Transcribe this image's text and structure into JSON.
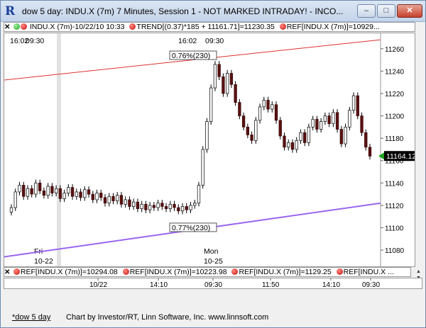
{
  "window": {
    "title": "dow 5 day: INDU.X (7m) 7 Minutes, Session 1 - NOT MARKED INTRADAY! - INCO...",
    "min_glyph": "–",
    "max_glyph": "□",
    "close_glyph": "✕"
  },
  "legend_top": {
    "close_glyph": "✕",
    "symbol": "INDU.X (7m)-10/22/10 10:33",
    "trend": "TREND[(0.37)*185 + 11161.71]=11230.35",
    "ref": "REF[INDU.X (7m)]=10929..."
  },
  "legend_bottom": {
    "close_glyph": "✕",
    "items": [
      "REF[INDU.X (7m)]=10294.08",
      "REF[INDU.X (7m)]=10223.98",
      "REF[INDU.X (7m)]=1129.25",
      "REF[INDU.X ..."
    ]
  },
  "chart_data": {
    "type": "candlestick",
    "y_axis": {
      "ticks": [
        11080,
        11100,
        11120,
        11140,
        11160,
        11180,
        11200,
        11220,
        11240,
        11260
      ],
      "range": [
        11068,
        11270
      ],
      "side": "right"
    },
    "last_price_label": "11164.12",
    "top_time_labels": [
      "16:02",
      "09:30",
      "16:02",
      "09:30"
    ],
    "session_labels": [
      {
        "day": "Fri",
        "date": "10-22"
      },
      {
        "day": "Mon",
        "date": "10-25"
      }
    ],
    "bottom_time_labels": [
      "10/22",
      "14:10",
      "09:30",
      "11:50",
      "14:10",
      "09:30"
    ],
    "channel_annotations": [
      {
        "label": "0.76%(230)",
        "line": "upper",
        "color": "#e03030"
      },
      {
        "label": "0.77%(230)",
        "line": "lower",
        "color": "#9966ee"
      }
    ],
    "upper_trend": {
      "start": 11232,
      "end": 11268,
      "color": "#e03030"
    },
    "lower_trend": {
      "start": 11074,
      "end": 11122,
      "color": "#9966ee"
    },
    "closes": [
      11118,
      11132,
      11138,
      11128,
      11135,
      11130,
      11140,
      11133,
      11129,
      11137,
      11131,
      11135,
      11126,
      11131,
      11136,
      11128,
      11132,
      11127,
      11134,
      11130,
      11125,
      11131,
      11127,
      11122,
      11128,
      11124,
      11129,
      11121,
      11125,
      11119,
      11123,
      11117,
      11121,
      11116,
      11120,
      11118,
      11122,
      11119,
      11117,
      11121,
      11118,
      11115,
      11119,
      11116,
      11120,
      11122,
      11138,
      11170,
      11195,
      11225,
      11246,
      11235,
      11220,
      11238,
      11228,
      11212,
      11200,
      11190,
      11183,
      11178,
      11196,
      11208,
      11214,
      11206,
      11210,
      11196,
      11182,
      11172,
      11176,
      11170,
      11178,
      11185,
      11176,
      11190,
      11197,
      11188,
      11195,
      11200,
      11193,
      11203,
      11188,
      11175,
      11190,
      11205,
      11218,
      11200,
      11185,
      11172,
      11164
    ]
  },
  "footer": {
    "workspace": "*dow 5 day",
    "credits": "Chart by Investor/RT, Linn Software, Inc. www.linnsoft.com"
  }
}
